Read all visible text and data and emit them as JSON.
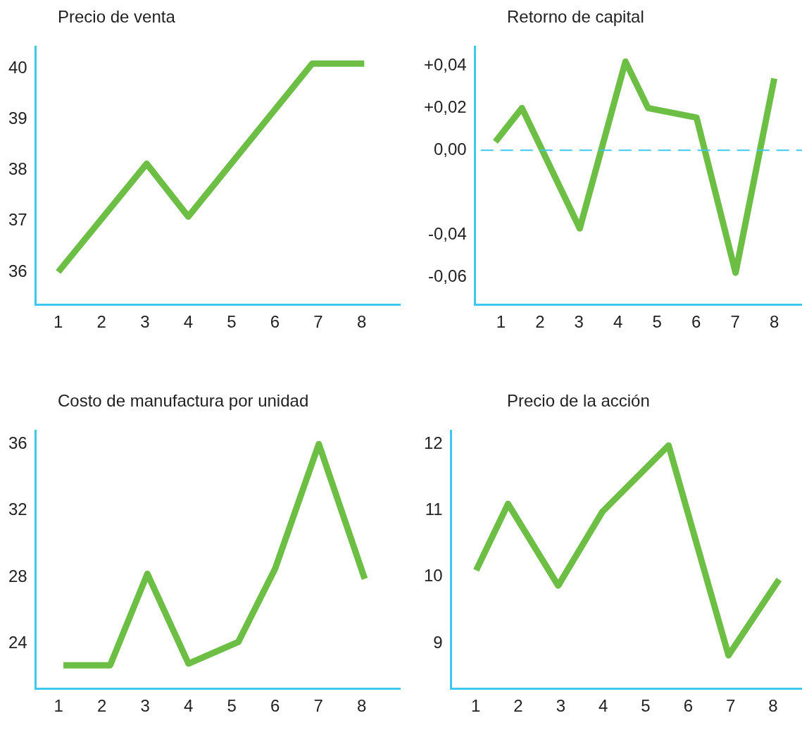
{
  "chart_data": [
    {
      "type": "line",
      "title": "Precio de venta",
      "grid": false,
      "series": [
        {
          "color": "#6dbe45",
          "x": [
            1,
            3.04,
            4,
            6.86,
            8.06
          ],
          "values": [
            36.0,
            38.13,
            37.09,
            40.1,
            40.1
          ]
        }
      ],
      "xlim": [
        0.48,
        8.9
      ],
      "xticks": [
        1,
        2,
        3,
        4,
        5,
        6,
        7,
        8
      ],
      "ylim": [
        35.36,
        40.43
      ],
      "yticks": [
        36,
        37,
        38,
        39,
        40
      ]
    },
    {
      "type": "line",
      "title": "Retorno de capital",
      "grid": false,
      "series": [
        {
          "color": "#6dbe45",
          "x": [
            0.86,
            1.54,
            3.02,
            4.19,
            4.77,
            6.01,
            7.01,
            8.0
          ],
          "values": [
            0.004,
            0.02,
            -0.037,
            0.042,
            0.02,
            0.0155,
            -0.058,
            0.034
          ]
        }
      ],
      "xlim": [
        0.34,
        8.71
      ],
      "xticks": [
        1,
        2,
        3,
        4,
        5,
        6,
        7,
        8
      ],
      "ylim": [
        -0.073,
        0.049
      ],
      "yticks": [
        {
          "value": 0.04,
          "label": "+0,04"
        },
        {
          "value": 0.02,
          "label": "+0,02"
        },
        {
          "value": 0,
          "label": "0,00"
        },
        {
          "value": -0.04,
          "label": "-0,04"
        },
        {
          "value": -0.06,
          "label": "-0,06"
        }
      ],
      "ref_lines": [
        {
          "axis": "y",
          "value": 0,
          "color": "#3ec8f0",
          "line_style": "dashed"
        }
      ]
    },
    {
      "type": "line",
      "title": "Costo de manufactura por unidad",
      "grid": false,
      "series": [
        {
          "color": "#6dbe45",
          "x": [
            1.11,
            2.19,
            3.05,
            4.0,
            5.15,
            6.0,
            7.01,
            8.07
          ],
          "values": [
            22.7,
            22.7,
            28.2,
            22.8,
            24.1,
            28.5,
            36.0,
            27.9
          ]
        }
      ],
      "xlim": [
        0.47,
        8.9
      ],
      "xticks": [
        1,
        2,
        3,
        4,
        5,
        6,
        7,
        8
      ],
      "ylim": [
        21.3,
        36.8
      ],
      "yticks": [
        24,
        28,
        32,
        36
      ]
    },
    {
      "type": "line",
      "title": "Precio de la acción",
      "grid": false,
      "series": [
        {
          "color": "#6dbe45",
          "x": [
            1.01,
            1.76,
            2.94,
            3.98,
            5.54,
            6.95,
            8.14
          ],
          "values": [
            10.1,
            11.1,
            9.87,
            10.98,
            11.98,
            8.82,
            9.96
          ]
        }
      ],
      "xlim": [
        0.42,
        8.68
      ],
      "xticks": [
        1,
        2,
        3,
        4,
        5,
        6,
        7,
        8
      ],
      "ylim": [
        8.32,
        12.2
      ],
      "yticks": [
        9,
        10,
        11,
        12
      ]
    }
  ]
}
